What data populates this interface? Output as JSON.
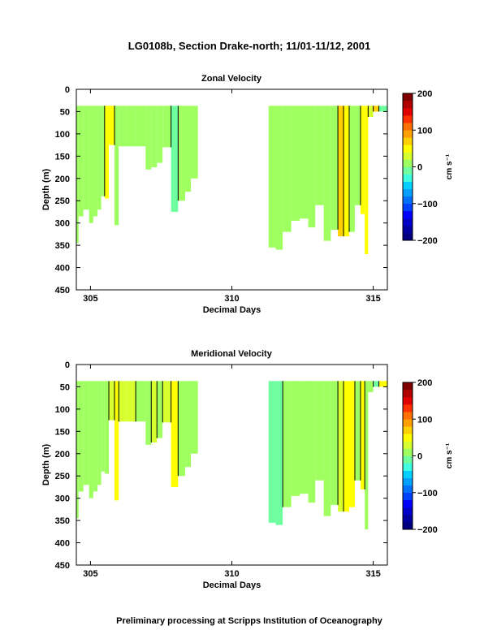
{
  "figure": {
    "title": "LG0108b, Section Drake-north; 11/01-11/12, 2001",
    "footer": "Preliminary processing at Scripps Institution of Oceanography",
    "colors": {
      "background": "#ffffff",
      "gap": "#ffffff",
      "contour_line": "#000000"
    }
  },
  "colorbar": {
    "label": "cm s⁻¹",
    "range": [
      -200,
      200
    ],
    "ticks": [
      200,
      100,
      0,
      -100,
      -200
    ],
    "tick_labels": [
      "200",
      "100",
      "0",
      "−100",
      "−200"
    ],
    "levels": [
      {
        "from": -200,
        "to": -180,
        "color": "#00007f"
      },
      {
        "from": -180,
        "to": -160,
        "color": "#0000a0"
      },
      {
        "from": -160,
        "to": -140,
        "color": "#0000c8"
      },
      {
        "from": -140,
        "to": -120,
        "color": "#0000ff"
      },
      {
        "from": -120,
        "to": -100,
        "color": "#0040ff"
      },
      {
        "from": -100,
        "to": -80,
        "color": "#0070ff"
      },
      {
        "from": -80,
        "to": -60,
        "color": "#00a0ff"
      },
      {
        "from": -60,
        "to": -40,
        "color": "#00d0ff"
      },
      {
        "from": -40,
        "to": -20,
        "color": "#40ffe0"
      },
      {
        "from": -20,
        "to": 0,
        "color": "#70ffa0"
      },
      {
        "from": 0,
        "to": 20,
        "color": "#a0ff60"
      },
      {
        "from": 20,
        "to": 40,
        "color": "#d8ff30"
      },
      {
        "from": 40,
        "to": 60,
        "color": "#ffff00"
      },
      {
        "from": 60,
        "to": 80,
        "color": "#ffd000"
      },
      {
        "from": 80,
        "to": 100,
        "color": "#ffa000"
      },
      {
        "from": 100,
        "to": 120,
        "color": "#ff7000"
      },
      {
        "from": 120,
        "to": 140,
        "color": "#ff3000"
      },
      {
        "from": 140,
        "to": 160,
        "color": "#e00000"
      },
      {
        "from": 160,
        "to": 180,
        "color": "#b00000"
      },
      {
        "from": 180,
        "to": 200,
        "color": "#800000"
      }
    ]
  },
  "chart_data": [
    {
      "type": "heatmap",
      "title": "Zonal Velocity",
      "xlabel": "Decimal Days",
      "ylabel": "Depth (m)",
      "xlim": [
        304.5,
        315.5
      ],
      "ylim": [
        0,
        450
      ],
      "y_inverted": true,
      "xticks": [
        305,
        310,
        315
      ],
      "xtick_labels": [
        "305",
        "310",
        "315"
      ],
      "yticks": [
        0,
        50,
        100,
        150,
        200,
        250,
        300,
        350,
        400,
        450
      ],
      "ytick_labels": [
        "0",
        "50",
        "100",
        "150",
        "200",
        "250",
        "300",
        "350",
        "400",
        "450"
      ],
      "units": "cm s⁻¹",
      "top_depth": 37,
      "columns": [
        {
          "x0": 304.5,
          "x1": 304.58,
          "bottom": 345,
          "value": 0
        },
        {
          "x0": 304.58,
          "x1": 304.75,
          "bottom": 285,
          "value": 5
        },
        {
          "x0": 304.75,
          "x1": 304.95,
          "bottom": 270,
          "value": 15
        },
        {
          "x0": 304.95,
          "x1": 305.1,
          "bottom": 300,
          "value": 5
        },
        {
          "x0": 305.1,
          "x1": 305.25,
          "bottom": 285,
          "value": 5
        },
        {
          "x0": 305.25,
          "x1": 305.38,
          "bottom": 270,
          "value": 10
        },
        {
          "x0": 305.38,
          "x1": 305.5,
          "bottom": 240,
          "value": 5
        },
        {
          "x0": 305.5,
          "x1": 305.65,
          "bottom": 245,
          "value": 50
        },
        {
          "x0": 305.65,
          "x1": 305.85,
          "bottom": 125,
          "value": 50
        },
        {
          "x0": 305.85,
          "x1": 306.0,
          "bottom": 305,
          "value": 0
        },
        {
          "x0": 306.0,
          "x1": 306.3,
          "bottom": 128,
          "value": 5
        },
        {
          "x0": 306.3,
          "x1": 306.6,
          "bottom": 128,
          "value": 10
        },
        {
          "x0": 306.6,
          "x1": 306.95,
          "bottom": 128,
          "value": 5
        },
        {
          "x0": 306.95,
          "x1": 307.15,
          "bottom": 180,
          "value": 5
        },
        {
          "x0": 307.15,
          "x1": 307.35,
          "bottom": 175,
          "value": 5
        },
        {
          "x0": 307.35,
          "x1": 307.55,
          "bottom": 165,
          "value": 5
        },
        {
          "x0": 307.55,
          "x1": 307.85,
          "bottom": 130,
          "value": 10
        },
        {
          "x0": 307.85,
          "x1": 308.1,
          "bottom": 275,
          "value": -5
        },
        {
          "x0": 308.1,
          "x1": 308.35,
          "bottom": 250,
          "value": 10
        },
        {
          "x0": 308.35,
          "x1": 308.55,
          "bottom": 230,
          "value": 15
        },
        {
          "x0": 308.55,
          "x1": 308.8,
          "bottom": 200,
          "value": 5
        },
        {
          "x0": 311.3,
          "x1": 311.55,
          "bottom": 355,
          "value": 5
        },
        {
          "x0": 311.55,
          "x1": 311.8,
          "bottom": 360,
          "value": 5
        },
        {
          "x0": 311.8,
          "x1": 312.1,
          "bottom": 320,
          "value": 0
        },
        {
          "x0": 312.1,
          "x1": 312.4,
          "bottom": 295,
          "value": 5
        },
        {
          "x0": 312.4,
          "x1": 312.7,
          "bottom": 290,
          "value": 10
        },
        {
          "x0": 312.7,
          "x1": 312.95,
          "bottom": 310,
          "value": 10
        },
        {
          "x0": 312.95,
          "x1": 313.25,
          "bottom": 260,
          "value": 15
        },
        {
          "x0": 313.25,
          "x1": 313.5,
          "bottom": 340,
          "value": 15
        },
        {
          "x0": 313.5,
          "x1": 313.75,
          "bottom": 315,
          "value": 5
        },
        {
          "x0": 313.75,
          "x1": 313.95,
          "bottom": 330,
          "value": 70
        },
        {
          "x0": 313.95,
          "x1": 314.15,
          "bottom": 330,
          "value": 40
        },
        {
          "x0": 314.15,
          "x1": 314.35,
          "bottom": 320,
          "value": 10
        },
        {
          "x0": 314.35,
          "x1": 314.55,
          "bottom": 260,
          "value": 10
        },
        {
          "x0": 314.55,
          "x1": 314.7,
          "bottom": 280,
          "value": 50
        },
        {
          "x0": 314.7,
          "x1": 314.82,
          "bottom": 370,
          "value": 45
        },
        {
          "x0": 314.82,
          "x1": 315.0,
          "bottom": 62,
          "value": 30
        },
        {
          "x0": 315.0,
          "x1": 315.2,
          "bottom": 50,
          "value": 60
        },
        {
          "x0": 315.2,
          "x1": 315.5,
          "bottom": 50,
          "value": -20
        }
      ]
    },
    {
      "type": "heatmap",
      "title": "Meridional Velocity",
      "xlabel": "Decimal Days",
      "ylabel": "Depth (m)",
      "xlim": [
        304.5,
        315.5
      ],
      "ylim": [
        0,
        450
      ],
      "y_inverted": true,
      "xticks": [
        305,
        310,
        315
      ],
      "xtick_labels": [
        "305",
        "310",
        "315"
      ],
      "yticks": [
        0,
        50,
        100,
        150,
        200,
        250,
        300,
        350,
        400,
        450
      ],
      "ytick_labels": [
        "0",
        "50",
        "100",
        "150",
        "200",
        "250",
        "300",
        "350",
        "400",
        "450"
      ],
      "units": "cm s⁻¹",
      "top_depth": 37,
      "columns": [
        {
          "x0": 304.5,
          "x1": 304.58,
          "bottom": 345,
          "value": 0
        },
        {
          "x0": 304.58,
          "x1": 304.75,
          "bottom": 285,
          "value": 15
        },
        {
          "x0": 304.75,
          "x1": 304.95,
          "bottom": 270,
          "value": 5
        },
        {
          "x0": 304.95,
          "x1": 305.1,
          "bottom": 300,
          "value": 5
        },
        {
          "x0": 305.1,
          "x1": 305.25,
          "bottom": 285,
          "value": 5
        },
        {
          "x0": 305.25,
          "x1": 305.38,
          "bottom": 270,
          "value": 10
        },
        {
          "x0": 305.38,
          "x1": 305.5,
          "bottom": 240,
          "value": 15
        },
        {
          "x0": 305.5,
          "x1": 305.65,
          "bottom": 245,
          "value": 15
        },
        {
          "x0": 305.65,
          "x1": 305.85,
          "bottom": 125,
          "value": 30
        },
        {
          "x0": 305.85,
          "x1": 306.0,
          "bottom": 305,
          "value": 45
        },
        {
          "x0": 306.0,
          "x1": 306.3,
          "bottom": 128,
          "value": 20
        },
        {
          "x0": 306.3,
          "x1": 306.6,
          "bottom": 128,
          "value": 35
        },
        {
          "x0": 306.6,
          "x1": 306.95,
          "bottom": 128,
          "value": 15
        },
        {
          "x0": 306.95,
          "x1": 307.15,
          "bottom": 180,
          "value": 10
        },
        {
          "x0": 307.15,
          "x1": 307.35,
          "bottom": 175,
          "value": 20
        },
        {
          "x0": 307.35,
          "x1": 307.55,
          "bottom": 165,
          "value": 10
        },
        {
          "x0": 307.55,
          "x1": 307.85,
          "bottom": 130,
          "value": 20
        },
        {
          "x0": 307.85,
          "x1": 308.1,
          "bottom": 275,
          "value": 45
        },
        {
          "x0": 308.1,
          "x1": 308.35,
          "bottom": 250,
          "value": 10
        },
        {
          "x0": 308.35,
          "x1": 308.55,
          "bottom": 230,
          "value": 15
        },
        {
          "x0": 308.55,
          "x1": 308.8,
          "bottom": 200,
          "value": 10
        },
        {
          "x0": 311.3,
          "x1": 311.55,
          "bottom": 355,
          "value": -5
        },
        {
          "x0": 311.55,
          "x1": 311.8,
          "bottom": 360,
          "value": -5
        },
        {
          "x0": 311.8,
          "x1": 312.1,
          "bottom": 320,
          "value": 5
        },
        {
          "x0": 312.1,
          "x1": 312.4,
          "bottom": 295,
          "value": 15
        },
        {
          "x0": 312.4,
          "x1": 312.7,
          "bottom": 290,
          "value": 5
        },
        {
          "x0": 312.7,
          "x1": 312.95,
          "bottom": 310,
          "value": 15
        },
        {
          "x0": 312.95,
          "x1": 313.25,
          "bottom": 260,
          "value": 10
        },
        {
          "x0": 313.25,
          "x1": 313.5,
          "bottom": 340,
          "value": 5
        },
        {
          "x0": 313.5,
          "x1": 313.75,
          "bottom": 315,
          "value": 10
        },
        {
          "x0": 313.75,
          "x1": 313.95,
          "bottom": 330,
          "value": 20
        },
        {
          "x0": 313.95,
          "x1": 314.15,
          "bottom": 330,
          "value": 45
        },
        {
          "x0": 314.15,
          "x1": 314.35,
          "bottom": 320,
          "value": 45
        },
        {
          "x0": 314.35,
          "x1": 314.55,
          "bottom": 260,
          "value": 15
        },
        {
          "x0": 314.55,
          "x1": 314.7,
          "bottom": 280,
          "value": 45
        },
        {
          "x0": 314.7,
          "x1": 314.82,
          "bottom": 370,
          "value": 15
        },
        {
          "x0": 314.82,
          "x1": 315.0,
          "bottom": 62,
          "value": 5
        },
        {
          "x0": 315.0,
          "x1": 315.2,
          "bottom": 50,
          "value": -20
        },
        {
          "x0": 315.2,
          "x1": 315.5,
          "bottom": 50,
          "value": 45
        }
      ]
    }
  ]
}
